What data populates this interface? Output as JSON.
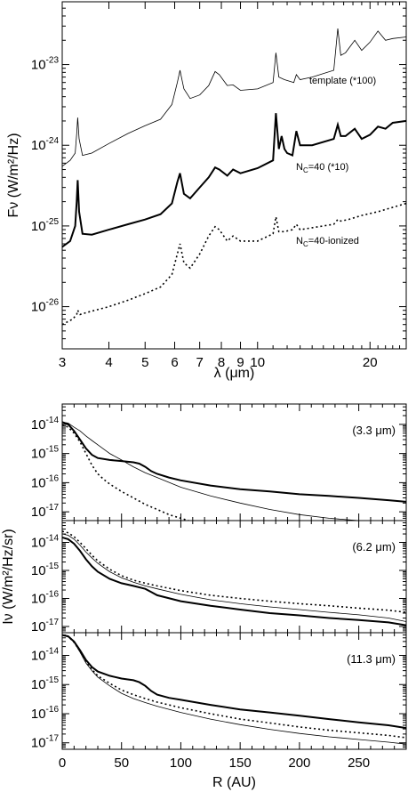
{
  "chart_data": [
    {
      "type": "line",
      "xlabel": "λ (μm)",
      "ylabel": "Fν (W/m²/Hz)",
      "x_scale": "log",
      "y_scale": "log",
      "xlim": [
        3,
        25
      ],
      "ylim": [
        3e-27,
        6e-23
      ],
      "x_ticks": [
        3,
        4,
        5,
        6,
        7,
        8,
        9,
        10,
        20
      ],
      "x_tick_labels": [
        "3",
        "4",
        "5",
        "6",
        "7",
        "8",
        "9",
        "10",
        "20"
      ],
      "y_ticks": [
        1e-26,
        1e-25,
        1e-24,
        1e-23
      ],
      "y_tick_labels": [
        {
          "base": "10",
          "exp": "-26"
        },
        {
          "base": "10",
          "exp": "-25"
        },
        {
          "base": "10",
          "exp": "-24"
        },
        {
          "base": "10",
          "exp": "-23"
        }
      ],
      "series": [
        {
          "name": "template (*100)",
          "style": "thin",
          "x": [
            3.0,
            3.15,
            3.25,
            3.28,
            3.3,
            3.33,
            3.4,
            3.6,
            4.0,
            4.5,
            5.0,
            5.5,
            5.9,
            6.1,
            6.2,
            6.35,
            6.6,
            7.0,
            7.4,
            7.7,
            7.9,
            8.3,
            8.6,
            9.0,
            10.0,
            11.0,
            11.2,
            11.4,
            11.8,
            12.5,
            12.7,
            13.0,
            14.0,
            16.0,
            16.4,
            16.7,
            17.2,
            18.2,
            19.0,
            20.0,
            21.0,
            22.0,
            23.0,
            25.0
          ],
          "y": [
            5.5e-25,
            6.5e-25,
            8e-25,
            1.4e-24,
            2.2e-24,
            1.2e-24,
            7.5e-25,
            8e-25,
            1.05e-24,
            1.4e-24,
            1.75e-24,
            2.1e-24,
            3.2e-24,
            6e-24,
            8.5e-24,
            5e-24,
            3.8e-24,
            4.2e-24,
            5.5e-24,
            8.2e-24,
            7.5e-24,
            5.5e-24,
            5.6e-24,
            4.8e-24,
            5e-24,
            6e-24,
            1.4e-23,
            7e-24,
            6.5e-24,
            6e-24,
            7.5e-24,
            6.5e-24,
            7e-24,
            8.5e-24,
            2.8e-23,
            1.3e-23,
            1.4e-23,
            2e-23,
            1.5e-23,
            1.9e-23,
            2.6e-23,
            2e-23,
            2.1e-23,
            2.2e-23
          ]
        },
        {
          "name": "N_C=40 (*10)",
          "style": "thick",
          "x": [
            3.0,
            3.15,
            3.25,
            3.28,
            3.3,
            3.33,
            3.4,
            3.6,
            4.0,
            4.5,
            5.0,
            5.5,
            5.9,
            6.1,
            6.2,
            6.35,
            6.6,
            7.0,
            7.4,
            7.7,
            7.9,
            8.3,
            8.6,
            9.0,
            10.0,
            11.0,
            11.2,
            11.4,
            11.6,
            11.8,
            12.0,
            12.4,
            12.7,
            13.0,
            14.0,
            16.0,
            16.4,
            16.7,
            17.2,
            18.2,
            19.0,
            20.0,
            21.0,
            22.0,
            23.0,
            25.0
          ],
          "y": [
            5.5e-26,
            6.5e-26,
            1e-25,
            2e-25,
            3.7e-25,
            1.5e-25,
            8e-26,
            7.8e-26,
            9e-26,
            1.05e-25,
            1.2e-25,
            1.4e-25,
            1.9e-25,
            3.5e-25,
            4.5e-25,
            2.5e-25,
            2.2e-25,
            3e-25,
            4e-25,
            5.3e-25,
            5e-25,
            4.2e-25,
            5e-25,
            4.5e-25,
            5.2e-25,
            6.5e-25,
            2.5e-24,
            9e-25,
            1.3e-24,
            9e-25,
            8e-25,
            7.5e-25,
            1.5e-24,
            1e-24,
            1e-24,
            1.2e-24,
            1.8e-24,
            1.3e-24,
            1.3e-24,
            1.6e-24,
            1.2e-24,
            1.35e-24,
            1.7e-24,
            1.6e-24,
            1.9e-24,
            2e-24
          ]
        },
        {
          "name": "N_C=40-ionized",
          "style": "dotted",
          "x": [
            3.0,
            3.2,
            3.28,
            3.3,
            3.35,
            3.5,
            4.0,
            4.5,
            5.0,
            5.5,
            5.9,
            6.1,
            6.2,
            6.35,
            6.6,
            7.0,
            7.4,
            7.7,
            7.9,
            8.3,
            8.6,
            9.0,
            10.0,
            11.0,
            11.2,
            11.4,
            11.8,
            12.4,
            12.7,
            13.0,
            14.0,
            16.0,
            16.4,
            16.7,
            17.5,
            19.0,
            21.0,
            23.0,
            25.0
          ],
          "y": [
            6e-27,
            7e-27,
            8e-27,
            9e-27,
            8e-27,
            8.5e-27,
            1e-26,
            1.2e-26,
            1.45e-26,
            1.75e-26,
            2.5e-26,
            4.5e-26,
            6e-26,
            3.5e-26,
            3e-26,
            4.5e-26,
            7.5e-26,
            9.8e-26,
            9e-26,
            6.5e-26,
            7.5e-26,
            6.5e-26,
            6.5e-26,
            8e-26,
            1.3e-25,
            8.5e-26,
            8.5e-26,
            9e-26,
            1.05e-25,
            9e-26,
            9.5e-26,
            1.05e-25,
            1.2e-25,
            1.15e-25,
            1.2e-25,
            1.35e-25,
            1.5e-25,
            1.7e-25,
            1.9e-25
          ]
        }
      ],
      "annotations": [
        {
          "text": "template (*100)",
          "at_series": 0
        },
        {
          "base": "N",
          "sub": "C",
          "rest": "=40 (*10)",
          "at_series": 1
        },
        {
          "base": "N",
          "sub": "C",
          "rest": "=40-ionized",
          "at_series": 2
        }
      ]
    },
    {
      "type": "line",
      "xlabel": "R (AU)",
      "ylabel": "Iν (W/m²/Hz/sr)",
      "y_scale": "log",
      "xlim": [
        0,
        290
      ],
      "x_ticks": [
        0,
        50,
        100,
        150,
        200,
        250
      ],
      "x_tick_labels": [
        "0",
        "50",
        "100",
        "150",
        "200",
        "250"
      ],
      "panels": [
        {
          "label": "(3.3 μm)",
          "ylim": [
            5e-18,
            5e-14
          ],
          "y_ticks": [
            1e-17,
            1e-16,
            1e-15,
            1e-14
          ],
          "y_tick_labels": [
            {
              "base": "10",
              "exp": "-17"
            },
            {
              "base": "10",
              "exp": "-16"
            },
            {
              "base": "10",
              "exp": "-15"
            },
            {
              "base": "10",
              "exp": "-14"
            }
          ],
          "series": [
            {
              "style": "thick",
              "x": [
                0,
                5,
                10,
                15,
                20,
                25,
                30,
                40,
                50,
                60,
                65,
                70,
                75,
                80,
                90,
                100,
                125,
                150,
                175,
                200,
                225,
                250,
                275,
                290
              ],
              "y": [
                1.2e-14,
                1e-14,
                6e-15,
                3e-15,
                1.5e-15,
                9e-16,
                7e-16,
                6e-16,
                5.5e-16,
                5e-16,
                4.5e-16,
                3.5e-16,
                2.5e-16,
                2e-16,
                1.5e-16,
                1.2e-16,
                8e-17,
                6e-17,
                5e-17,
                4e-17,
                3.5e-17,
                3e-17,
                2.5e-17,
                2.2e-17
              ]
            },
            {
              "style": "thin",
              "x": [
                0,
                5,
                10,
                15,
                20,
                25,
                30,
                40,
                50,
                60,
                70,
                80,
                100,
                125,
                150,
                175,
                200,
                225,
                250,
                290
              ],
              "y": [
                1.2e-14,
                1.1e-14,
                8e-15,
                6e-15,
                4e-15,
                2.8e-15,
                2e-15,
                1e-15,
                6e-16,
                3.5e-16,
                2.2e-16,
                1.5e-16,
                7e-17,
                3.5e-17,
                2e-17,
                1.2e-17,
                8e-18,
                6e-18,
                5e-18,
                4e-18
              ]
            },
            {
              "style": "dotted",
              "x": [
                0,
                5,
                10,
                15,
                20,
                25,
                30,
                35,
                40,
                50,
                60,
                70,
                80,
                90,
                100,
                110
              ],
              "y": [
                1e-14,
                8e-15,
                5e-15,
                2.5e-15,
                1e-15,
                4e-16,
                2e-16,
                1.3e-16,
                9e-17,
                5e-17,
                3e-17,
                1.8e-17,
                1.2e-17,
                8e-18,
                6e-18,
                4.5e-18
              ]
            }
          ]
        },
        {
          "label": "(6.2 μm)",
          "ylim": [
            6e-18,
            6e-14
          ],
          "y_ticks": [
            1e-17,
            1e-16,
            1e-15,
            1e-14
          ],
          "y_tick_labels": [
            {
              "base": "10",
              "exp": "-17"
            },
            {
              "base": "10",
              "exp": "-16"
            },
            {
              "base": "10",
              "exp": "-15"
            },
            {
              "base": "10",
              "exp": "-14"
            }
          ],
          "series": [
            {
              "style": "thick",
              "x": [
                0,
                5,
                10,
                15,
                20,
                25,
                30,
                40,
                50,
                60,
                70,
                75,
                80,
                100,
                125,
                150,
                175,
                200,
                225,
                250,
                275,
                290
              ],
              "y": [
                1.5e-14,
                1.3e-14,
                9e-15,
                5e-15,
                2.5e-15,
                1.4e-15,
                9e-16,
                5e-16,
                3.5e-16,
                2.8e-16,
                2.2e-16,
                1.7e-16,
                1.3e-16,
                8e-17,
                5.5e-17,
                4e-17,
                3e-17,
                2.5e-17,
                2e-17,
                1.7e-17,
                1.4e-17,
                1.1e-17
              ]
            },
            {
              "style": "thin",
              "x": [
                0,
                5,
                10,
                15,
                20,
                25,
                30,
                40,
                50,
                60,
                70,
                80,
                100,
                125,
                150,
                175,
                200,
                225,
                250,
                275,
                290
              ],
              "y": [
                2e-14,
                1.8e-14,
                1.3e-14,
                8e-15,
                4.5e-15,
                2.8e-15,
                1.8e-15,
                9e-16,
                5.5e-16,
                3.8e-16,
                2.8e-16,
                2.2e-16,
                1.4e-16,
                9e-17,
                6.5e-17,
                5e-17,
                4e-17,
                3.2e-17,
                2.6e-17,
                2e-17,
                1.5e-17
              ]
            },
            {
              "style": "dotted",
              "x": [
                0,
                5,
                10,
                15,
                20,
                25,
                30,
                40,
                50,
                60,
                70,
                80,
                100,
                125,
                150,
                175,
                200,
                225,
                250,
                275,
                290
              ],
              "y": [
                2.5e-14,
                2.2e-14,
                1.6e-14,
                1e-14,
                6e-15,
                3.5e-15,
                2.2e-15,
                1.1e-15,
                6.5e-16,
                4.5e-16,
                3.5e-16,
                2.8e-16,
                1.9e-16,
                1.3e-16,
                1e-16,
                8e-17,
                6.5e-17,
                5.5e-17,
                4.5e-17,
                3.8e-17,
                3.2e-17
              ]
            }
          ]
        },
        {
          "label": "(11.3 μm)",
          "ylim": [
            6e-18,
            6e-14
          ],
          "y_ticks": [
            1e-17,
            1e-16,
            1e-15,
            1e-14
          ],
          "y_tick_labels": [
            {
              "base": "10",
              "exp": "-17"
            },
            {
              "base": "10",
              "exp": "-16"
            },
            {
              "base": "10",
              "exp": "-15"
            },
            {
              "base": "10",
              "exp": "-14"
            }
          ],
          "series": [
            {
              "style": "thick",
              "x": [
                0,
                5,
                10,
                15,
                20,
                25,
                30,
                40,
                50,
                60,
                65,
                70,
                75,
                80,
                90,
                100,
                125,
                150,
                175,
                200,
                225,
                250,
                275,
                290
              ],
              "y": [
                5e-14,
                4.5e-14,
                3e-14,
                1.5e-14,
                7e-15,
                4e-15,
                2.8e-15,
                2e-15,
                1.6e-15,
                1.4e-15,
                1.2e-15,
                9e-16,
                6e-16,
                4.5e-16,
                3.5e-16,
                3e-16,
                2e-16,
                1.4e-16,
                1.1e-16,
                8.5e-17,
                6.5e-17,
                5e-17,
                4e-17,
                3.2e-17
              ]
            },
            {
              "style": "thin",
              "x": [
                0,
                5,
                10,
                15,
                20,
                25,
                30,
                40,
                50,
                60,
                70,
                80,
                100,
                125,
                150,
                175,
                200,
                225,
                250,
                275,
                290
              ],
              "y": [
                5e-14,
                4.5e-14,
                2.8e-14,
                1.3e-14,
                5.5e-15,
                3e-15,
                1.8e-15,
                9e-16,
                5e-16,
                3.3e-16,
                2.4e-16,
                1.8e-16,
                1.1e-16,
                6.5e-17,
                4.2e-17,
                2.9e-17,
                2.1e-17,
                1.6e-17,
                1.3e-17,
                1.05e-17,
                9e-18
              ]
            },
            {
              "style": "dotted",
              "x": [
                0,
                5,
                10,
                15,
                20,
                25,
                30,
                40,
                50,
                60,
                70,
                80,
                100,
                125,
                150,
                175,
                200,
                225,
                250,
                275,
                290
              ],
              "y": [
                5e-14,
                4.5e-14,
                2.8e-14,
                1.4e-14,
                6e-15,
                3.3e-15,
                2e-15,
                1.1e-15,
                6.5e-16,
                4.5e-16,
                3.3e-16,
                2.5e-16,
                1.6e-16,
                1e-16,
                6.5e-17,
                4.8e-17,
                3.5e-17,
                2.7e-17,
                2.2e-17,
                1.8e-17,
                1.5e-17
              ]
            }
          ]
        }
      ]
    }
  ]
}
